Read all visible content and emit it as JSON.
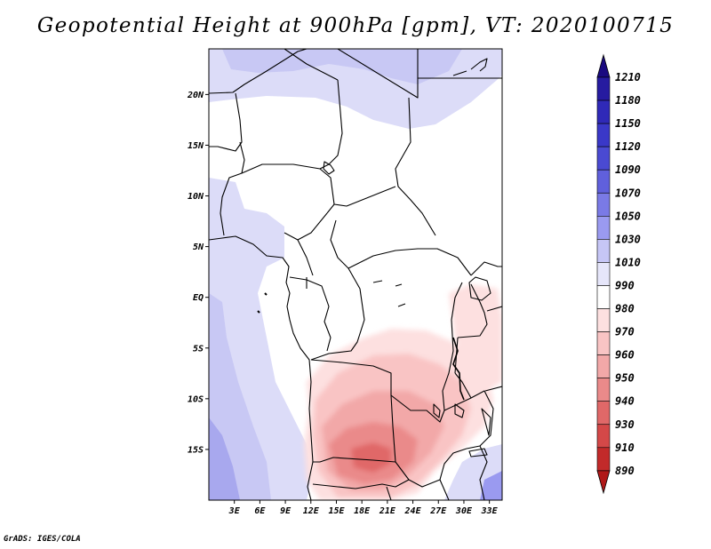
{
  "title": "Geopotential Height at 900hPa [gpm], VT: 2020100715",
  "footer": "GrADS: IGES/COLA",
  "map": {
    "variable": "Geopotential Height",
    "level": "900hPa",
    "units": "gpm",
    "valid_time": "2020100715",
    "lat_labels": [
      "20N",
      "15N",
      "10N",
      "5N",
      "EQ",
      "5S",
      "10S",
      "15S"
    ],
    "lon_labels": [
      "3E",
      "6E",
      "9E",
      "12E",
      "15E",
      "18E",
      "21E",
      "24E",
      "27E",
      "30E",
      "33E"
    ],
    "lon_range": [
      0,
      34.5
    ],
    "lat_range": [
      -20,
      24.5
    ]
  },
  "colorbar": {
    "levels": [
      {
        "label": "1210",
        "color": "#1a0a80"
      },
      {
        "label": "1180",
        "color": "#261ba0"
      },
      {
        "label": "1150",
        "color": "#2f29b8"
      },
      {
        "label": "1120",
        "color": "#3a38c8"
      },
      {
        "label": "1090",
        "color": "#4a4ad2"
      },
      {
        "label": "1070",
        "color": "#6060dc"
      },
      {
        "label": "1050",
        "color": "#7a7ae6"
      },
      {
        "label": "1030",
        "color": "#9a9af0"
      },
      {
        "label": "1010",
        "color": "#c6c6f6"
      },
      {
        "label": "990",
        "color": "#e6e6fa"
      },
      {
        "label": "980",
        "color": "#ffffff"
      },
      {
        "label": "970",
        "color": "#fde0e0"
      },
      {
        "label": "960",
        "color": "#f9c4c4"
      },
      {
        "label": "950",
        "color": "#f2a8a8"
      },
      {
        "label": "940",
        "color": "#ea8a8a"
      },
      {
        "label": "930",
        "color": "#e06868"
      },
      {
        "label": "910",
        "color": "#d44848"
      },
      {
        "label": "890",
        "color": "#c22a2a"
      }
    ],
    "bottom_color": "#b01818"
  }
}
